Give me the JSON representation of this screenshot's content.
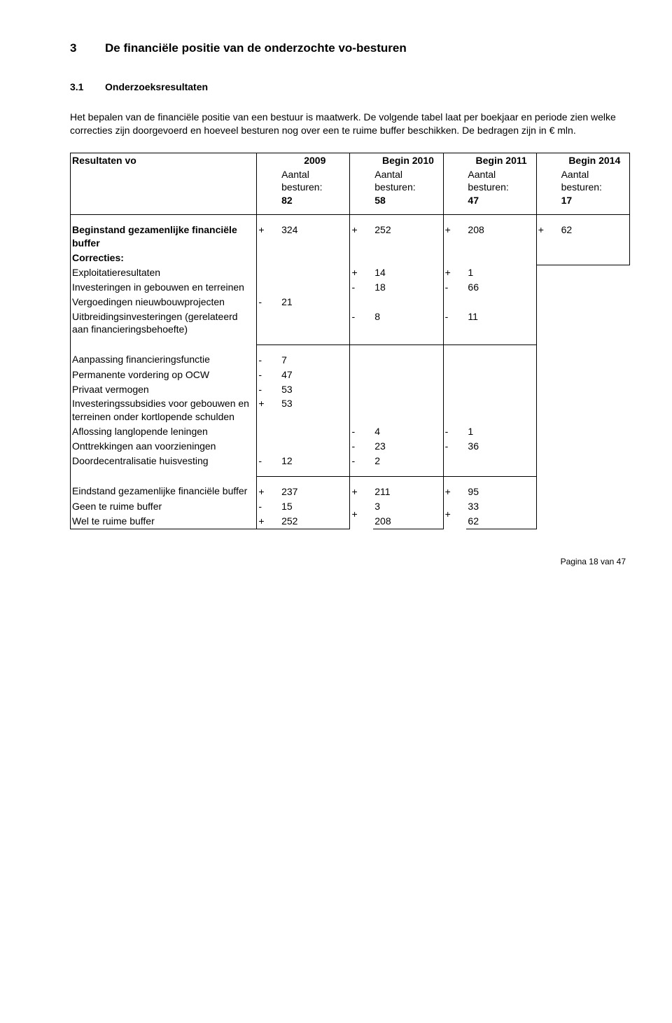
{
  "title_num": "3",
  "title_text": "De financiële positie van de onderzochte vo-besturen",
  "sub_num": "3.1",
  "sub_text": "Onderzoeksresultaten",
  "para": "Het bepalen van de financiële positie van een bestuur is maatwerk. De volgende tabel laat per boekjaar en periode zien welke correcties zijn doorgevoerd en hoeveel besturen nog over een te ruime buffer beschikken. De bedragen zijn in € mln.",
  "header": {
    "label": "Resultaten vo",
    "years": [
      "2009",
      "Begin 2010",
      "Begin 2011",
      "Begin 2014"
    ],
    "sublabel": "Aantal besturen:",
    "counts": [
      "82",
      "58",
      "47",
      "17"
    ]
  },
  "rows": {
    "beginstand": {
      "label": "Beginstand gezamenlijke financiële buffer",
      "c1s": "+",
      "c1v": "324",
      "c2s": "+",
      "c2v": "252",
      "c3s": "+",
      "c3v": "208",
      "c4s": "+",
      "c4v": "62"
    },
    "correcties": {
      "label": "Correcties:"
    },
    "exploit": {
      "label": "Exploitatieresultaten",
      "c2s": "+",
      "c2v": "14",
      "c3s": "+",
      "c3v": "1"
    },
    "invest_geb": {
      "label": "Investeringen in gebouwen en terreinen",
      "c2s": "-",
      "c2v": "18",
      "c3s": "-",
      "c3v": "66"
    },
    "vergoed": {
      "label": "Vergoedingen nieuwbouwprojecten",
      "c1s": "-",
      "c1v": "21"
    },
    "uitbreid": {
      "label": "Uitbreidingsinvesteringen (gerelateerd aan financieringsbehoefte)",
      "c2s": "-",
      "c2v": "8",
      "c3s": "-",
      "c3v": "11"
    },
    "aanpas": {
      "label": "Aanpassing financieringsfunctie",
      "c1s": "-",
      "c1v": "7"
    },
    "permvord": {
      "label": "Permanente vordering op OCW",
      "c1s": "-",
      "c1v": "47"
    },
    "privaat": {
      "label": "Privaat vermogen",
      "c1s": "-",
      "c1v": "53"
    },
    "investsub": {
      "label": "Investeringssubsidies voor gebouwen en terreinen onder kortlopende schulden",
      "c1s": "+",
      "c1v": "53"
    },
    "aflossing": {
      "label": "Aflossing langlopende leningen",
      "c2s": "-",
      "c2v": "4",
      "c3s": "-",
      "c3v": "1"
    },
    "onttrek": {
      "label": "Onttrekkingen aan voorzieningen",
      "c2s": "-",
      "c2v": "23",
      "c3s": "-",
      "c3v": "36"
    },
    "doordecentr": {
      "label": "Doordecentralisatie huisvesting",
      "c1s": "-",
      "c1v": "12",
      "c2s": "-",
      "c2v": "2"
    },
    "eindstand": {
      "label": "Eindstand gezamenlijke financiële buffer",
      "c1s": "+",
      "c1v": "237",
      "c2s": "+",
      "c2v": "211",
      "c3s": "+",
      "c3v": "95"
    },
    "geen": {
      "label": "Geen te ruime buffer",
      "c1s": "-",
      "c1v": "15",
      "c2sA": "+",
      "c2vA": "3",
      "c3sA": "+",
      "c3vA": "33"
    },
    "wel": {
      "label": "Wel te ruime buffer",
      "c1s": "+",
      "c1v": "252",
      "c2vB": "208",
      "c3vB": "62"
    }
  },
  "footer": "Pagina 18 van 47"
}
